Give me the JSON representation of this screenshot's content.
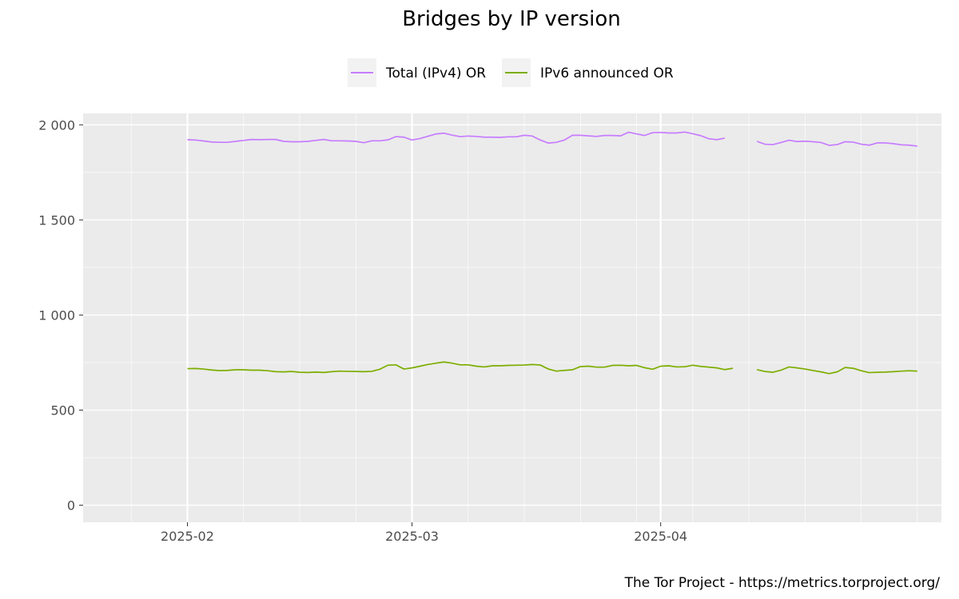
{
  "chart_data": {
    "type": "line",
    "title": "Bridges by IP version",
    "xlabel": "",
    "ylabel": "",
    "caption": "The Tor Project - https://metrics.torproject.org/",
    "legend_position": "top",
    "grid": true,
    "colors": {
      "panel": "#ebebeb",
      "grid": "#ffffff",
      "tick_text": "#4d4d4d"
    },
    "ylim": [
      -90,
      2060
    ],
    "yticks": [
      {
        "value": 0,
        "label": "0"
      },
      {
        "value": 500,
        "label": "500"
      },
      {
        "value": 1000,
        "label": "1 000"
      },
      {
        "value": 1500,
        "label": "1 500"
      },
      {
        "value": 2000,
        "label": "2 000"
      }
    ],
    "xlim_day": [
      -13,
      94
    ],
    "xticks": [
      {
        "day": 0,
        "label": "2025-02"
      },
      {
        "day": 28,
        "label": "2025-03"
      },
      {
        "day": 59,
        "label": "2025-04"
      }
    ],
    "x_start_date": "2025-01-26",
    "series": [
      {
        "name": "Total (IPv4) OR",
        "color": "#c77cff",
        "segments": [
          [
            1922,
            1920,
            1915,
            1910,
            1908,
            1908,
            1913,
            1918,
            1923,
            1922,
            1923,
            1923,
            1913,
            1911,
            1911,
            1913,
            1918,
            1923,
            1916,
            1916,
            1915,
            1913,
            1906,
            1916,
            1916,
            1921,
            1938,
            1935,
            1920,
            1928,
            1940,
            1952,
            1956,
            1946,
            1938,
            1941,
            1939,
            1935,
            1935,
            1934,
            1937,
            1937,
            1945,
            1941,
            1920,
            1904,
            1908,
            1920,
            1945,
            1945,
            1942,
            1939,
            1944,
            1944,
            1942,
            1961,
            1952,
            1944,
            1959,
            1960,
            1957,
            1957,
            1962,
            1953,
            1943,
            1927,
            1922,
            1930
          ],
          [
            1913,
            1898,
            1896,
            1907,
            1919,
            1912,
            1914,
            1911,
            1907,
            1892,
            1896,
            1911,
            1909,
            1898,
            1893,
            1905,
            1905,
            1901,
            1895,
            1893,
            1888
          ]
        ]
      },
      {
        "name": "IPv6 announced OR",
        "color": "#7cae00",
        "segments": [
          [
            718,
            719,
            716,
            711,
            708,
            709,
            712,
            712,
            710,
            710,
            707,
            702,
            701,
            703,
            699,
            698,
            700,
            698,
            702,
            705,
            704,
            703,
            702,
            704,
            715,
            736,
            738,
            716,
            722,
            731,
            740,
            747,
            753,
            747,
            738,
            738,
            731,
            727,
            733,
            733,
            735,
            736,
            737,
            740,
            737,
            716,
            705,
            709,
            712,
            729,
            731,
            726,
            726,
            735,
            736,
            733,
            735,
            723,
            715,
            731,
            733,
            727,
            728,
            736,
            730,
            726,
            722,
            713,
            720
          ],
          [
            713,
            703,
            699,
            710,
            727,
            722,
            716,
            708,
            701,
            692,
            701,
            724,
            720,
            707,
            697,
            699,
            700,
            702,
            705,
            707,
            705
          ]
        ]
      }
    ]
  }
}
